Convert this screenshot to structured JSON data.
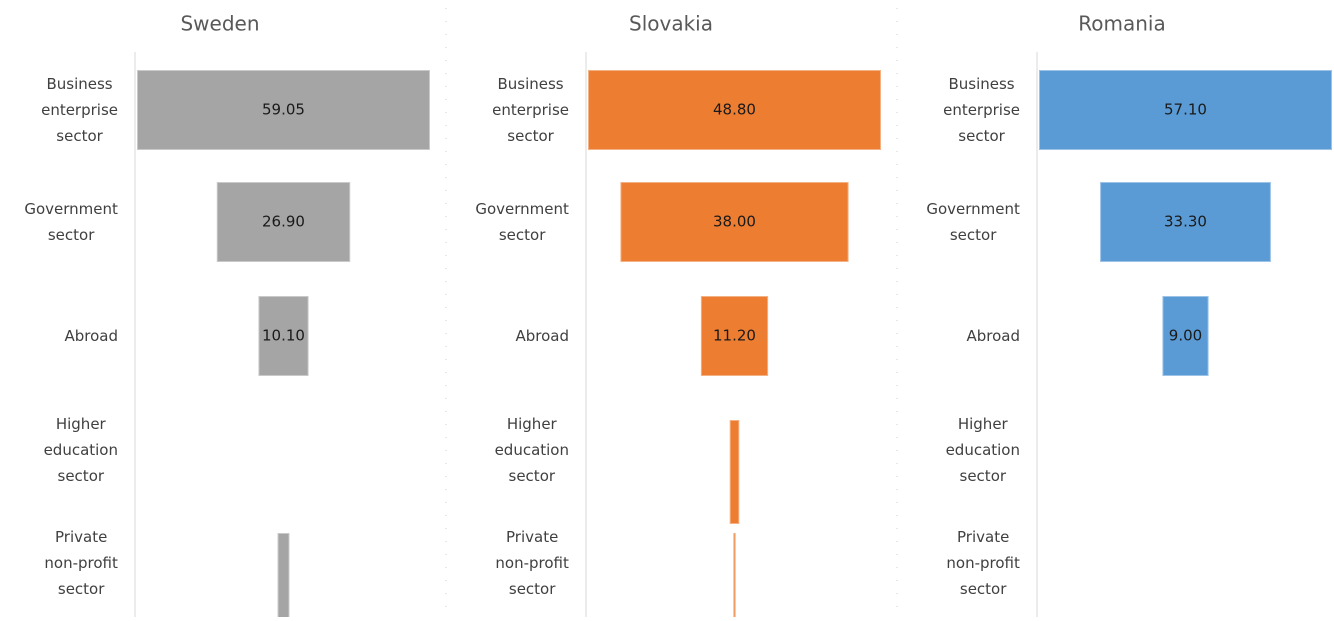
{
  "chart_data": [
    {
      "type": "funnel",
      "title": "Sweden",
      "color": "#a5a5a5",
      "categories": [
        "Business enterprise sector",
        "Government sector",
        "Abroad",
        "Higher education sector",
        "Private non-profit sector"
      ],
      "values": [
        59.05,
        26.9,
        10.1,
        0,
        2.4
      ],
      "value_labels": [
        "59.05",
        "26.90",
        "10.10",
        null,
        null
      ]
    },
    {
      "type": "funnel",
      "title": "Slovakia",
      "color": "#ed7d31",
      "categories": [
        "Business enterprise sector",
        "Government sector",
        "Abroad",
        "Higher education sector",
        "Private non-profit sector"
      ],
      "values": [
        48.8,
        38,
        11.2,
        1.6,
        0.4
      ],
      "value_labels": [
        "48.80",
        "38.00",
        "11.20",
        null,
        null
      ]
    },
    {
      "type": "funnel",
      "title": "Romania",
      "color": "#5b9bd5",
      "categories": [
        "Business enterprise sector",
        "Government sector",
        "Abroad",
        "Higher education sector",
        "Private non-profit sector"
      ],
      "values": [
        57.1,
        33.3,
        9,
        0,
        0
      ],
      "value_labels": [
        "57.10",
        "33.30",
        "9.00",
        null,
        null
      ]
    }
  ]
}
